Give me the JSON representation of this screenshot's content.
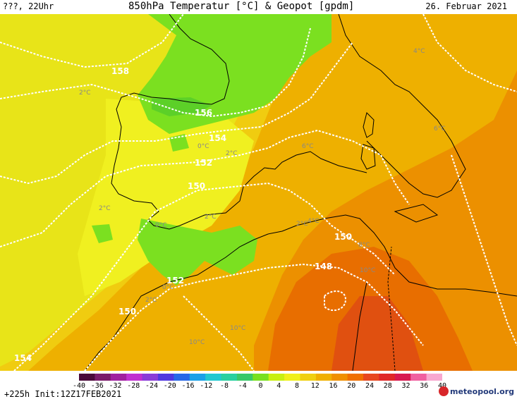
{
  "header": {
    "left": "???, 22Uhr",
    "title": "850hPa Temperatur [°C] & Geopot [gpdm]",
    "date": "26. Februar 2021"
  },
  "geopotential_labels": [
    "158",
    "156",
    "154",
    "152",
    "150",
    "152",
    "150",
    "148",
    "150",
    "154"
  ],
  "temperature_labels": [
    "2°C",
    "0°C",
    "2°C",
    "2°C",
    "2°C",
    "0°C",
    "2°C",
    "0°C",
    "2°C",
    "6°C",
    "4°C",
    "4°C",
    "8°C",
    "10°C",
    "10°C",
    "10°C",
    "6°C"
  ],
  "scale": {
    "ticks": [
      "-40",
      "-36",
      "-32",
      "-28",
      "-24",
      "-20",
      "-16",
      "-12",
      "-8",
      "-4",
      "0",
      "4",
      "8",
      "12",
      "16",
      "20",
      "24",
      "28",
      "32",
      "36",
      "40"
    ],
    "colors": [
      "#4a0a3a",
      "#7a1a6a",
      "#a020a0",
      "#c030d0",
      "#8a3cd8",
      "#5038e0",
      "#2868e8",
      "#1aa0e8",
      "#20c8d0",
      "#28d0a0",
      "#38c868",
      "#78e020",
      "#c8f010",
      "#f0f018",
      "#f0d010",
      "#f0b000",
      "#f09000",
      "#f07000",
      "#e84820",
      "#e02828",
      "#d81850",
      "#f060a0",
      "#f8a8d0"
    ]
  },
  "footer": {
    "run_info": "+225h Init:12Z17FEB2021",
    "brand": "meteopool.org"
  },
  "colors": {
    "cold_green": "#7be020",
    "yellow": "#eef018",
    "light_yellow_orange": "#f0d818",
    "orange": "#eeaa00",
    "dark_orange": "#e87800",
    "red_orange": "#e05010"
  }
}
